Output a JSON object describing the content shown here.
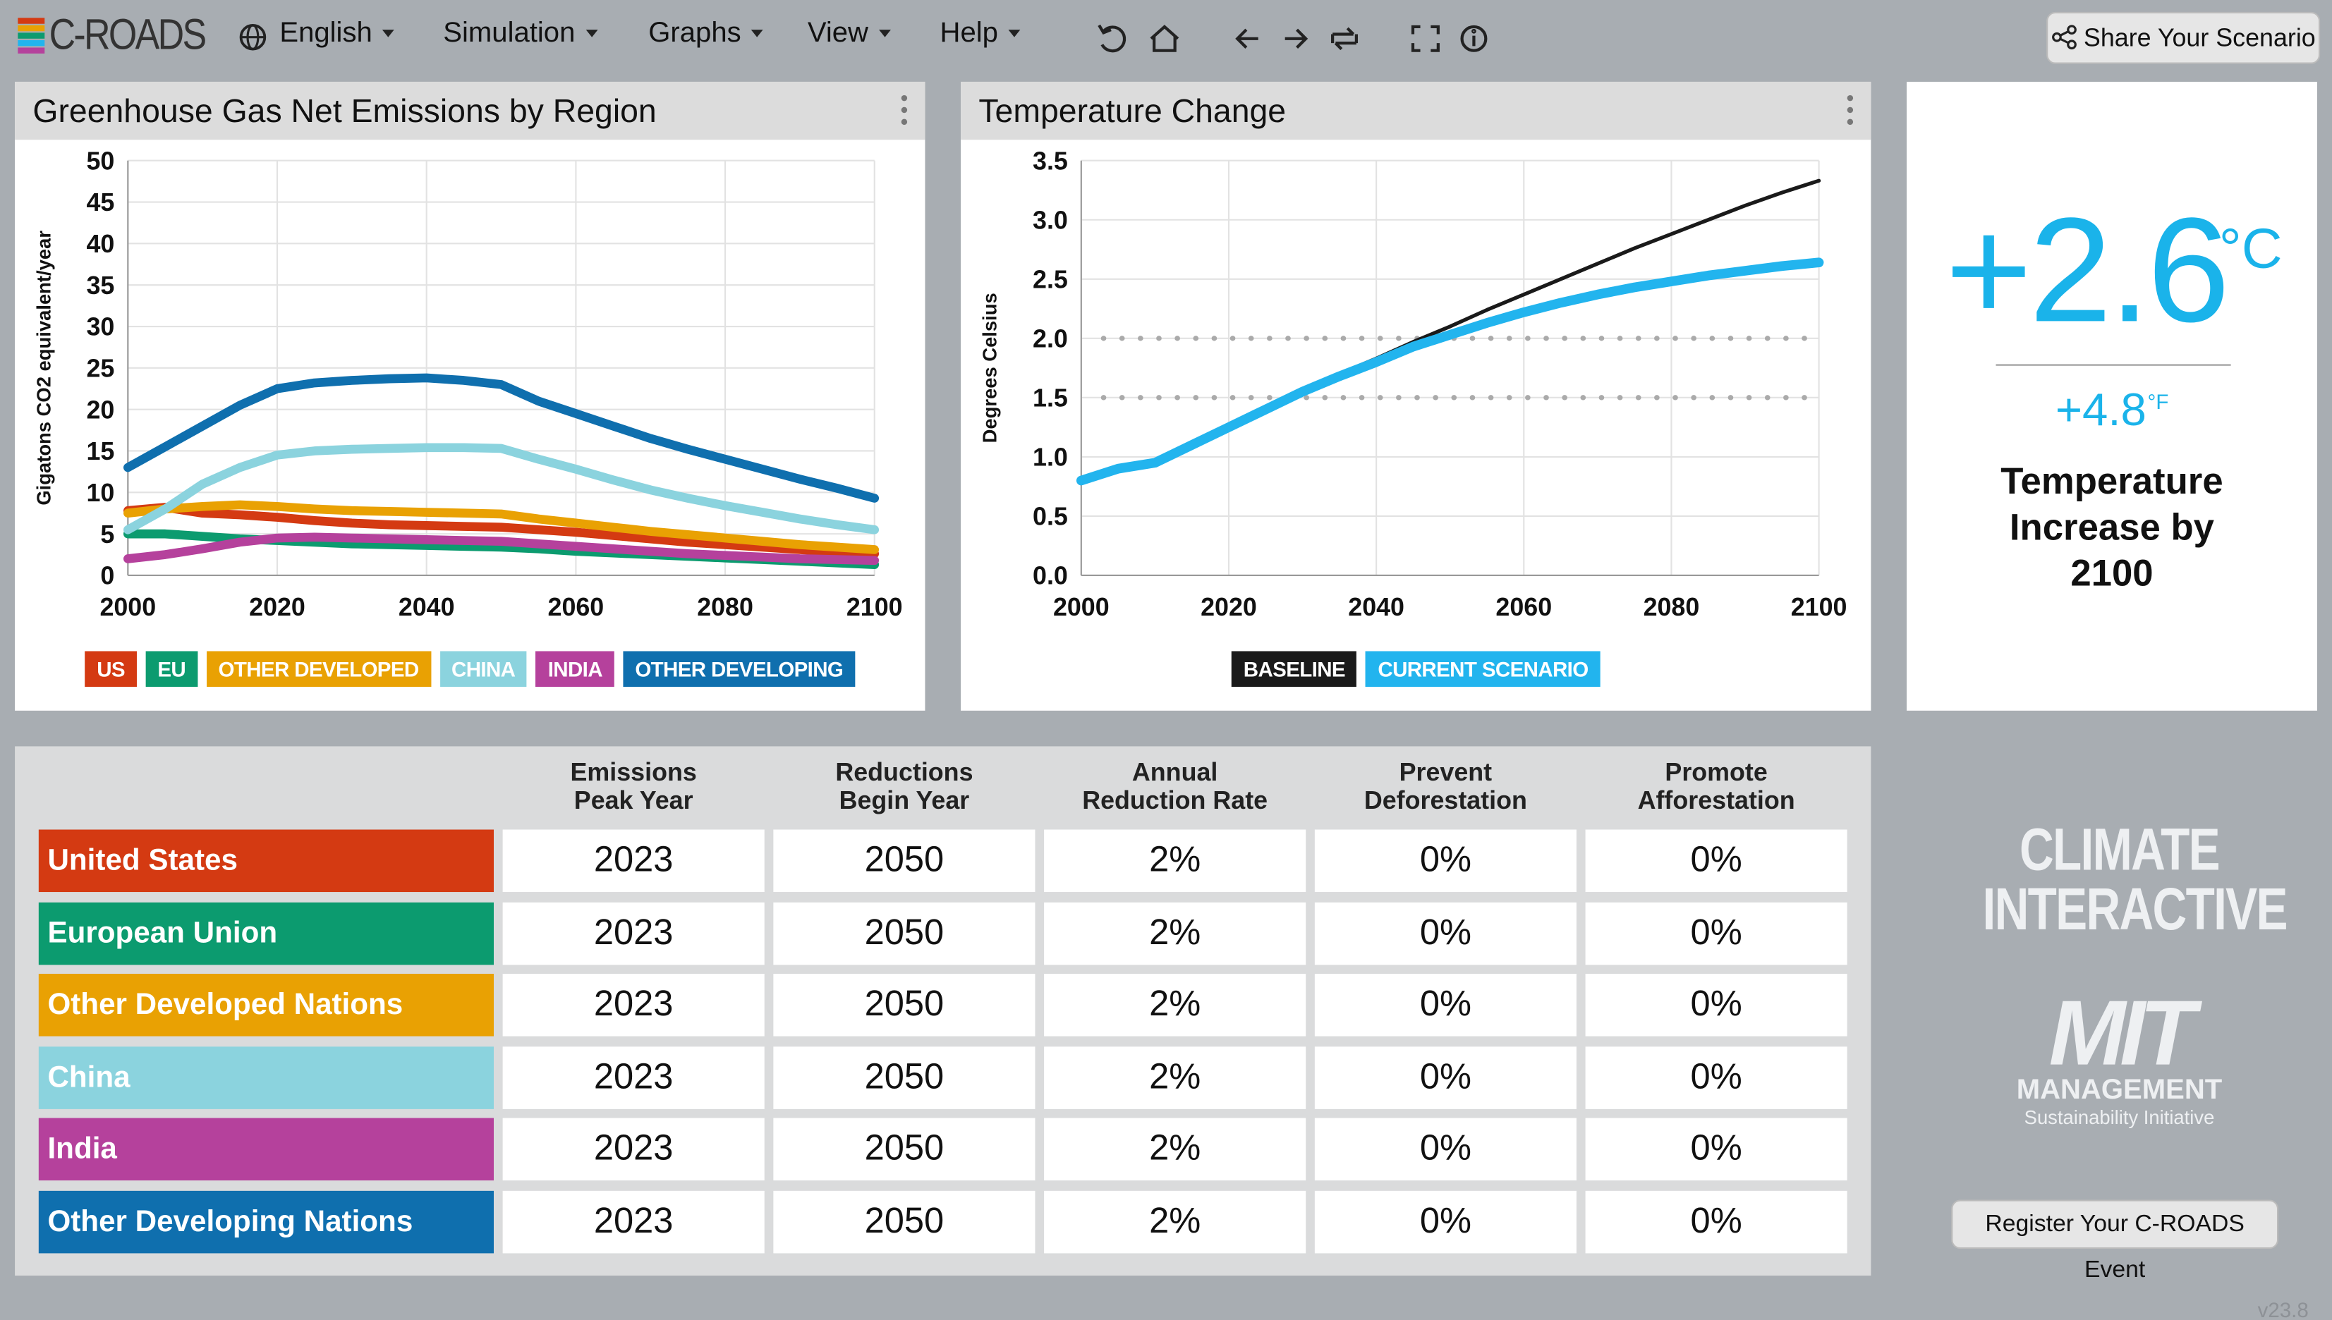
{
  "app": {
    "logo": "C-ROADS",
    "menu": [
      "English",
      "Simulation",
      "Graphs",
      "View",
      "Help"
    ],
    "share": "Share Your Scenario"
  },
  "chart_data": [
    {
      "type": "line",
      "title": "Greenhouse Gas Net Emissions by Region",
      "y_label": "Gigatons CO2 equivalent/year",
      "x": [
        2000,
        2005,
        2010,
        2015,
        2020,
        2025,
        2030,
        2035,
        2040,
        2045,
        2050,
        2055,
        2060,
        2065,
        2070,
        2075,
        2080,
        2085,
        2090,
        2095,
        2100
      ],
      "xlim": [
        2000,
        2100
      ],
      "xticks": [
        2000,
        2020,
        2040,
        2060,
        2080,
        2100
      ],
      "ylim": [
        0,
        50
      ],
      "yticks": [
        0,
        5,
        10,
        15,
        20,
        25,
        30,
        35,
        40,
        45,
        50
      ],
      "grid": true,
      "series": [
        {
          "name": "US",
          "color": "#d43a12",
          "values": [
            7.8,
            8.2,
            7.5,
            7.3,
            7,
            6.6,
            6.3,
            6.1,
            6,
            5.9,
            5.8,
            5.5,
            5.2,
            4.8,
            4.4,
            4,
            3.7,
            3.4,
            3.1,
            2.8,
            2.6
          ]
        },
        {
          "name": "EU",
          "color": "#0c9b6f",
          "values": [
            5,
            5,
            4.7,
            4.4,
            4.2,
            4,
            3.8,
            3.7,
            3.6,
            3.5,
            3.4,
            3.2,
            2.9,
            2.7,
            2.5,
            2.3,
            2.1,
            1.9,
            1.7,
            1.5,
            1.3
          ]
        },
        {
          "name": "OTHER DEVELOPED",
          "color": "#e9a103",
          "values": [
            7.5,
            8,
            8.3,
            8.5,
            8.3,
            8,
            7.8,
            7.7,
            7.6,
            7.5,
            7.4,
            6.8,
            6.3,
            5.8,
            5.3,
            4.9,
            4.5,
            4.1,
            3.7,
            3.4,
            3.1
          ]
        },
        {
          "name": "CHINA",
          "color": "#8bd3de",
          "values": [
            5.5,
            8,
            11,
            13,
            14.5,
            15,
            15.2,
            15.3,
            15.4,
            15.4,
            15.3,
            14,
            12.8,
            11.5,
            10.3,
            9.3,
            8.4,
            7.6,
            6.8,
            6.1,
            5.5
          ]
        },
        {
          "name": "INDIA",
          "color": "#b5419c",
          "values": [
            2,
            2.5,
            3.2,
            4,
            4.5,
            4.6,
            4.5,
            4.4,
            4.3,
            4.2,
            4.1,
            3.8,
            3.5,
            3.2,
            2.9,
            2.6,
            2.4,
            2.2,
            2,
            1.9,
            1.8
          ]
        },
        {
          "name": "OTHER DEVELOPING",
          "color": "#0f6fae",
          "values": [
            13,
            15.5,
            18,
            20.5,
            22.5,
            23.2,
            23.5,
            23.7,
            23.8,
            23.5,
            23,
            21,
            19.5,
            18,
            16.5,
            15.2,
            14,
            12.8,
            11.6,
            10.5,
            9.3
          ]
        }
      ]
    },
    {
      "type": "line",
      "title": "Temperature Change",
      "y_label": "Degrees Celsius",
      "x": [
        2000,
        2005,
        2010,
        2015,
        2020,
        2025,
        2030,
        2035,
        2040,
        2045,
        2050,
        2055,
        2060,
        2065,
        2070,
        2075,
        2080,
        2085,
        2090,
        2095,
        2100
      ],
      "xlim": [
        2000,
        2100
      ],
      "xticks": [
        2000,
        2020,
        2040,
        2060,
        2080,
        2100
      ],
      "ylim": [
        0,
        3.5
      ],
      "yticks": [
        {
          "value": 0,
          "label": "0.0"
        },
        0.5,
        {
          "value": 1,
          "label": "1.0"
        },
        1.5,
        {
          "value": 2,
          "label": "2.0"
        },
        2.5,
        {
          "value": 3,
          "label": "3.0"
        },
        3.5
      ],
      "grid": true,
      "reference_lines": [
        1.5,
        2
      ],
      "reference_color": "#aaaaaa",
      "series": [
        {
          "name": "BASELINE",
          "color": "#1a1a1a",
          "values": [
            0.8,
            0.9,
            0.95,
            1.1,
            1.25,
            1.4,
            1.55,
            1.7,
            1.83,
            1.97,
            2.1,
            2.24,
            2.37,
            2.5,
            2.63,
            2.76,
            2.88,
            3.0,
            3.12,
            3.23,
            3.33
          ]
        },
        {
          "name": "CURRENT SCENARIO",
          "color": "#22b4ee",
          "values": [
            0.8,
            0.9,
            0.95,
            1.1,
            1.25,
            1.4,
            1.55,
            1.68,
            1.8,
            1.93,
            2.03,
            2.13,
            2.22,
            2.3,
            2.37,
            2.43,
            2.48,
            2.53,
            2.57,
            2.61,
            2.64
          ]
        }
      ]
    }
  ],
  "result": {
    "value_c": "+2.6",
    "unit_c": "°C",
    "value_f": "+4.8",
    "unit_f": "°F",
    "label": [
      "Temperature",
      "Increase by",
      "2100"
    ]
  },
  "table": {
    "header": [
      [
        "Emissions",
        "Peak Year"
      ],
      [
        "Reductions",
        "Begin Year"
      ],
      [
        "Annual",
        "Reduction Rate"
      ],
      [
        "Prevent",
        "Deforestation"
      ],
      [
        "Promote",
        "Afforestation"
      ]
    ],
    "rows": [
      {
        "name": "United States",
        "color": "#d43a12",
        "cells": [
          "2023",
          "2050",
          "2%",
          "0%",
          "0%"
        ]
      },
      {
        "name": "European Union",
        "color": "#0c9b6f",
        "cells": [
          "2023",
          "2050",
          "2%",
          "0%",
          "0%"
        ]
      },
      {
        "name": "Other Developed Nations",
        "color": "#e9a103",
        "cells": [
          "2023",
          "2050",
          "2%",
          "0%",
          "0%"
        ]
      },
      {
        "name": "China",
        "color": "#8bd3de",
        "cells": [
          "2023",
          "2050",
          "2%",
          "0%",
          "0%"
        ]
      },
      {
        "name": "India",
        "color": "#b5419c",
        "cells": [
          "2023",
          "2050",
          "2%",
          "0%",
          "0%"
        ]
      },
      {
        "name": "Other Developing Nations",
        "color": "#0f6fae",
        "cells": [
          "2023",
          "2050",
          "2%",
          "0%",
          "0%"
        ]
      }
    ]
  },
  "footer": {
    "brand1": [
      "CLIMATE",
      "INTERACTIVE"
    ],
    "brand2": [
      "MIT",
      "MANAGEMENT",
      "Sustainability Initiative"
    ],
    "button": "Register Your C-ROADS Event",
    "version": "v23.8"
  }
}
